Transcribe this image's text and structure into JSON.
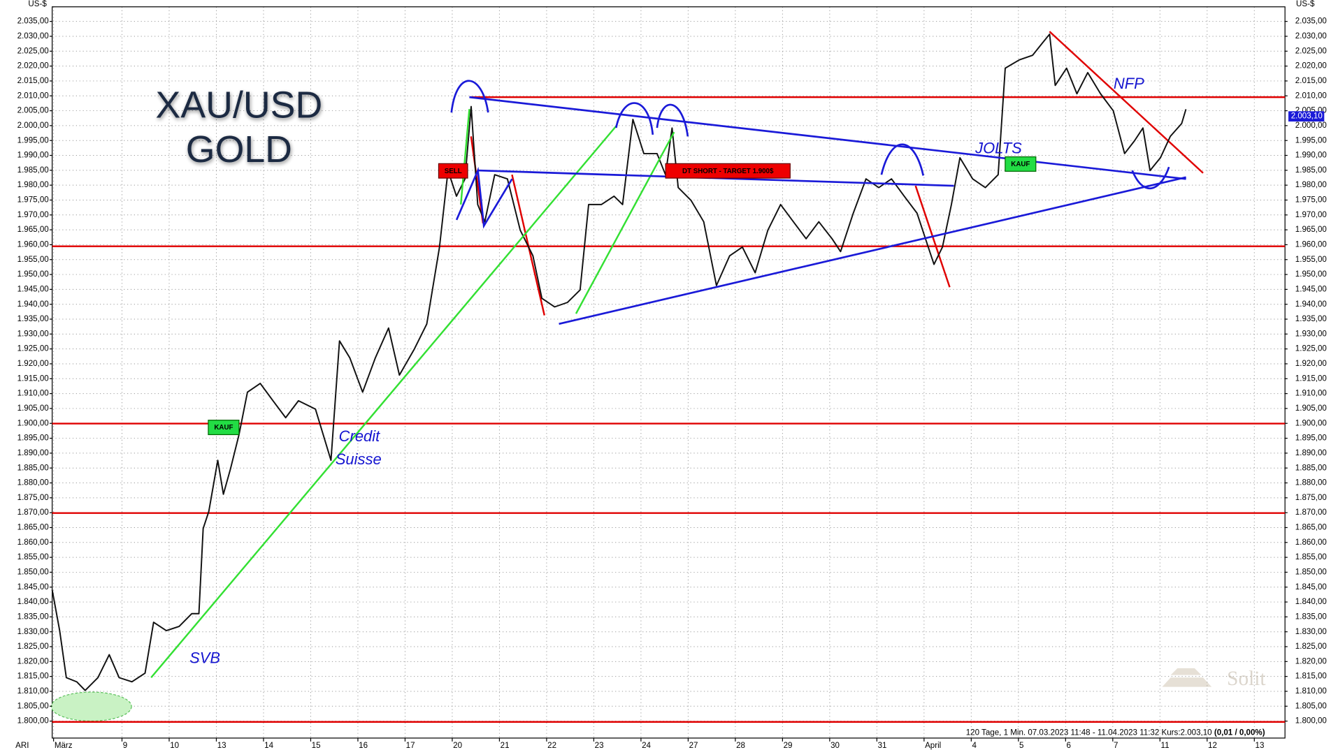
{
  "chart_data": {
    "type": "line",
    "title": "XAU/USD",
    "subtitle": "GOLD",
    "y_unit": "US-$",
    "corner_label": "ARI",
    "footer": "120 Tage, 1 Min. 07.03.2023 11:48 - 11.04.2023 11:32  Kurs:2.003,10",
    "footer_change": "(0,01 / 0,00%)",
    "watermark": "Solit",
    "color": "#111111",
    "grid": true,
    "x": [
      0.52,
      0.68,
      0.82,
      1.04,
      1.22,
      1.49,
      1.73,
      1.94,
      2.21,
      2.49,
      2.67,
      2.94,
      3.21,
      3.48,
      3.63,
      3.72,
      3.84,
      4.03,
      4.15,
      4.3,
      4.48,
      4.66,
      4.93,
      5.2,
      5.47,
      5.74,
      6.1,
      6.43,
      6.61,
      6.83,
      7.1,
      7.37,
      7.65,
      7.88,
      8.19,
      8.46,
      8.73,
      8.91,
      9.09,
      9.27,
      9.4,
      9.54,
      9.69,
      9.9,
      10.17,
      10.44,
      10.71,
      10.9,
      11.17,
      11.44,
      11.71,
      11.89,
      12.16,
      12.43,
      12.61,
      12.83,
      13.06,
      13.34,
      13.52,
      13.66,
      13.79,
      14.06,
      14.33,
      14.6,
      14.88,
      15.15,
      15.42,
      15.69,
      15.96,
      16.23,
      16.5,
      16.77,
      17.05,
      17.23,
      17.5,
      17.77,
      18.04,
      18.31,
      18.58,
      18.85,
      19.03,
      19.21,
      19.39,
      19.58,
      19.76,
      20.03,
      20.3,
      20.57,
      20.72,
      21.02,
      21.3,
      21.51,
      21.66,
      21.78,
      22.02,
      22.24,
      22.47,
      22.74,
      23.01,
      23.25,
      23.46,
      23.64,
      23.79,
      24.01,
      24.22,
      24.46,
      24.55
    ],
    "values": [
      1844.1,
      1830.4,
      1814.6,
      1813.2,
      1810.3,
      1814.6,
      1822.3,
      1814.6,
      1813.2,
      1816.1,
      1833.2,
      1830.4,
      1831.8,
      1836.1,
      1836.1,
      1864.7,
      1870.4,
      1887.6,
      1876.2,
      1884.7,
      1896.2,
      1910.5,
      1913.4,
      1907.6,
      1901.9,
      1907.6,
      1904.8,
      1887.6,
      1927.7,
      1922.0,
      1910.5,
      1922.0,
      1932.0,
      1916.2,
      1924.8,
      1933.4,
      1959.2,
      1984.9,
      1976.3,
      1982.1,
      2006.4,
      1973.5,
      1967.7,
      1983.5,
      1982.1,
      1964.9,
      1956.3,
      1942.0,
      1939.1,
      1940.6,
      1944.8,
      1973.5,
      1973.5,
      1976.3,
      1973.5,
      2002.1,
      1990.6,
      1990.6,
      1983.5,
      1999.2,
      1979.2,
      1974.9,
      1967.7,
      1946.3,
      1956.3,
      1959.2,
      1950.6,
      1964.9,
      1973.5,
      1967.7,
      1962.0,
      1967.7,
      1962.0,
      1957.7,
      1970.6,
      1982.1,
      1979.2,
      1982.1,
      1976.3,
      1970.6,
      1962.0,
      1953.4,
      1959.2,
      1973.5,
      1989.2,
      1982.1,
      1979.2,
      1983.5,
      2019.3,
      2022.1,
      2023.6,
      2027.8,
      2030.7,
      2013.5,
      2019.3,
      2010.7,
      2017.8,
      2010.7,
      2005.0,
      1990.6,
      1994.9,
      1999.2,
      1984.9,
      1989.2,
      1996.4,
      2000.7,
      2005.5
    ],
    "last_price": {
      "value": 2003.1,
      "label": "2.003,10"
    },
    "xlim": [
      0.52,
      26.65
    ],
    "xticks": [
      {
        "value": 0.55,
        "label": "März"
      },
      {
        "value": 2,
        "label": "9"
      },
      {
        "value": 3,
        "label": "10"
      },
      {
        "value": 4,
        "label": "13"
      },
      {
        "value": 5,
        "label": "14"
      },
      {
        "value": 6,
        "label": "15"
      },
      {
        "value": 7,
        "label": "16"
      },
      {
        "value": 8,
        "label": "17"
      },
      {
        "value": 9,
        "label": "20"
      },
      {
        "value": 10,
        "label": "21"
      },
      {
        "value": 11,
        "label": "22"
      },
      {
        "value": 12,
        "label": "23"
      },
      {
        "value": 13,
        "label": "24"
      },
      {
        "value": 14,
        "label": "27"
      },
      {
        "value": 15,
        "label": "28"
      },
      {
        "value": 16,
        "label": "29"
      },
      {
        "value": 17,
        "label": "30"
      },
      {
        "value": 18,
        "label": "31"
      },
      {
        "value": 19,
        "label": "April"
      },
      {
        "value": 20,
        "label": "4"
      },
      {
        "value": 21,
        "label": "5"
      },
      {
        "value": 22,
        "label": "6"
      },
      {
        "value": 23,
        "label": "7"
      },
      {
        "value": 24,
        "label": "11"
      },
      {
        "value": 25,
        "label": "12"
      },
      {
        "value": 26,
        "label": "13"
      }
    ],
    "ylim": [
      1794.3,
      2039.9
    ],
    "yticks": [
      {
        "value": 1800,
        "label": "1.800,00"
      },
      {
        "value": 1805,
        "label": "1.805,00"
      },
      {
        "value": 1810,
        "label": "1.810,00"
      },
      {
        "value": 1815,
        "label": "1.815,00"
      },
      {
        "value": 1820,
        "label": "1.820,00"
      },
      {
        "value": 1825,
        "label": "1.825,00"
      },
      {
        "value": 1830,
        "label": "1.830,00"
      },
      {
        "value": 1835,
        "label": "1.835,00"
      },
      {
        "value": 1840,
        "label": "1.840,00"
      },
      {
        "value": 1845,
        "label": "1.845,00"
      },
      {
        "value": 1850,
        "label": "1.850,00"
      },
      {
        "value": 1855,
        "label": "1.855,00"
      },
      {
        "value": 1860,
        "label": "1.860,00"
      },
      {
        "value": 1865,
        "label": "1.865,00"
      },
      {
        "value": 1870,
        "label": "1.870,00"
      },
      {
        "value": 1875,
        "label": "1.875,00"
      },
      {
        "value": 1880,
        "label": "1.880,00"
      },
      {
        "value": 1885,
        "label": "1.885,00"
      },
      {
        "value": 1890,
        "label": "1.890,00"
      },
      {
        "value": 1895,
        "label": "1.895,00"
      },
      {
        "value": 1900,
        "label": "1.900,00"
      },
      {
        "value": 1905,
        "label": "1.905,00"
      },
      {
        "value": 1910,
        "label": "1.910,00"
      },
      {
        "value": 1915,
        "label": "1.915,00"
      },
      {
        "value": 1920,
        "label": "1.920,00"
      },
      {
        "value": 1925,
        "label": "1.925,00"
      },
      {
        "value": 1930,
        "label": "1.930,00"
      },
      {
        "value": 1935,
        "label": "1.935,00"
      },
      {
        "value": 1940,
        "label": "1.940,00"
      },
      {
        "value": 1945,
        "label": "1.945,00"
      },
      {
        "value": 1950,
        "label": "1.950,00"
      },
      {
        "value": 1955,
        "label": "1.955,00"
      },
      {
        "value": 1960,
        "label": "1.960,00"
      },
      {
        "value": 1965,
        "label": "1.965,00"
      },
      {
        "value": 1970,
        "label": "1.970,00"
      },
      {
        "value": 1975,
        "label": "1.975,00"
      },
      {
        "value": 1980,
        "label": "1.980,00"
      },
      {
        "value": 1985,
        "label": "1.985,00"
      },
      {
        "value": 1990,
        "label": "1.990,00"
      },
      {
        "value": 1995,
        "label": "1.995,00"
      },
      {
        "value": 2000,
        "label": "2.000,00"
      },
      {
        "value": 2005,
        "label": "2.005,00"
      },
      {
        "value": 2010,
        "label": "2.010,00"
      },
      {
        "value": 2015,
        "label": "2.015,00"
      },
      {
        "value": 2020,
        "label": "2.020,00"
      },
      {
        "value": 2025,
        "label": "2.025,00"
      },
      {
        "value": 2030,
        "label": "2.030,00"
      },
      {
        "value": 2035,
        "label": "2.035,00"
      }
    ],
    "annotations": {
      "sell": "SELL",
      "buy_1": "KAUF",
      "buy_2": "KAUF",
      "short": "DT SHORT - TARGET 1.900$",
      "svb": "SVB",
      "credit": "Credit",
      "suisse": "Suisse",
      "jolts": "JOLTS",
      "nfp": "NFP"
    }
  }
}
